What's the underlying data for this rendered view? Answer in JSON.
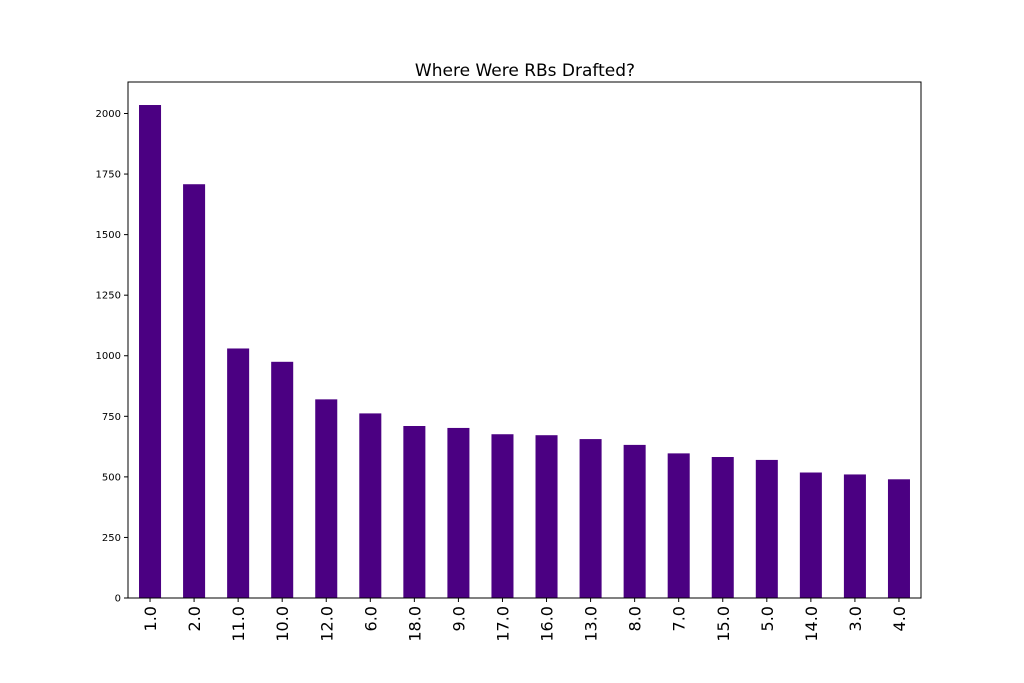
{
  "chart_data": {
    "type": "bar",
    "title": "Where Were RBs Drafted?",
    "xlabel": "",
    "ylabel": "",
    "categories": [
      "1.0",
      "2.0",
      "11.0",
      "10.0",
      "12.0",
      "6.0",
      "18.0",
      "9.0",
      "17.0",
      "16.0",
      "13.0",
      "8.0",
      "7.0",
      "15.0",
      "5.0",
      "14.0",
      "3.0",
      "4.0"
    ],
    "values": [
      2035,
      1708,
      1030,
      975,
      820,
      762,
      710,
      702,
      676,
      672,
      656,
      632,
      597,
      582,
      570,
      518,
      510,
      490
    ],
    "ylim": [
      0,
      2130
    ],
    "yticks": [
      0,
      250,
      500,
      750,
      1000,
      1250,
      1500,
      1750,
      2000
    ],
    "grid": false,
    "colors": {
      "bar": "#4b0082",
      "axis": "#000000"
    }
  }
}
